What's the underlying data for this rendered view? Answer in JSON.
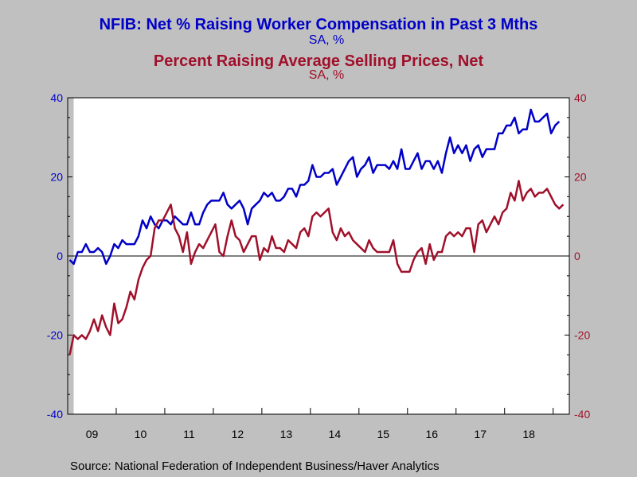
{
  "chart_data": {
    "type": "line",
    "title": "NFIB: Net % Raising Worker Compensation in Past 3 Mths",
    "title_sub": "SA, %",
    "title2": "Percent Raising Average Selling Prices, Net",
    "title2_sub": "SA, %",
    "source": "Source:  National Federation of Independent Business/Haver Analytics",
    "x_start": "2009-01",
    "x_end": "2019-04",
    "x_tick_labels": [
      "09",
      "10",
      "11",
      "12",
      "13",
      "14",
      "15",
      "16",
      "17",
      "18"
    ],
    "y_left": {
      "min": -40,
      "max": 40,
      "ticks": [
        "-40",
        "-20",
        "0",
        "20",
        "40"
      ]
    },
    "y_right": {
      "min": -40,
      "max": 40,
      "ticks": [
        "-40",
        "-20",
        "0",
        "20",
        "40"
      ]
    },
    "grid": false,
    "zero_line": true,
    "colors": {
      "background": "#c0c0c0",
      "plot": "#ffffff",
      "compensation": "#0000c8",
      "prices": "#a0102a"
    },
    "series": [
      {
        "name": "NFIB: Net % Raising Worker Compensation in Past 3 Mths",
        "color": "#0000c8",
        "axis": "left",
        "values": [
          -1,
          -2,
          1,
          1,
          3,
          1,
          1,
          2,
          1,
          -2,
          0,
          3,
          2,
          4,
          3,
          3,
          3,
          5,
          9,
          7,
          10,
          8,
          7,
          9,
          9,
          8,
          10,
          9,
          8,
          8,
          11,
          8,
          8,
          11,
          13,
          14,
          14,
          14,
          16,
          13,
          12,
          13,
          14,
          12,
          8,
          12,
          13,
          14,
          16,
          15,
          16,
          14,
          14,
          15,
          17,
          17,
          15,
          18,
          18,
          19,
          23,
          20,
          20,
          21,
          21,
          22,
          18,
          20,
          22,
          24,
          25,
          20,
          22,
          23,
          25,
          21,
          23,
          23,
          23,
          22,
          24,
          22,
          27,
          22,
          22,
          24,
          26,
          22,
          24,
          24,
          22,
          24,
          21,
          26,
          30,
          26,
          28,
          26,
          28,
          24,
          27,
          28,
          25,
          27,
          27,
          27,
          31,
          31,
          33,
          33,
          35,
          31,
          32,
          32,
          37,
          34,
          34,
          35,
          36,
          31,
          33,
          34
        ]
      },
      {
        "name": "Percent Raising Average Selling Prices, Net",
        "color": "#a0102a",
        "axis": "right",
        "values": [
          -25,
          -20,
          -21,
          -20,
          -21,
          -19,
          -16,
          -19,
          -15,
          -18,
          -20,
          -12,
          -17,
          -16,
          -13,
          -9,
          -11,
          -6,
          -3,
          -1,
          0,
          7,
          9,
          9,
          11,
          13,
          7,
          5,
          1,
          6,
          -2,
          1,
          3,
          2,
          4,
          6,
          8,
          1,
          0,
          5,
          9,
          5,
          4,
          1,
          3,
          5,
          5,
          -1,
          2,
          1,
          5,
          2,
          2,
          1,
          4,
          3,
          2,
          6,
          7,
          5,
          10,
          11,
          10,
          11,
          12,
          6,
          4,
          7,
          5,
          6,
          4,
          3,
          2,
          1,
          4,
          2,
          1,
          1,
          1,
          1,
          4,
          -2,
          -4,
          -4,
          -4,
          -1,
          1,
          2,
          -2,
          3,
          -1,
          1,
          1,
          5,
          6,
          5,
          6,
          5,
          7,
          7,
          1,
          8,
          9,
          6,
          8,
          10,
          8,
          11,
          12,
          16,
          14,
          19,
          14,
          16,
          17,
          15,
          16,
          16,
          17,
          15,
          13,
          12,
          13
        ]
      }
    ]
  }
}
